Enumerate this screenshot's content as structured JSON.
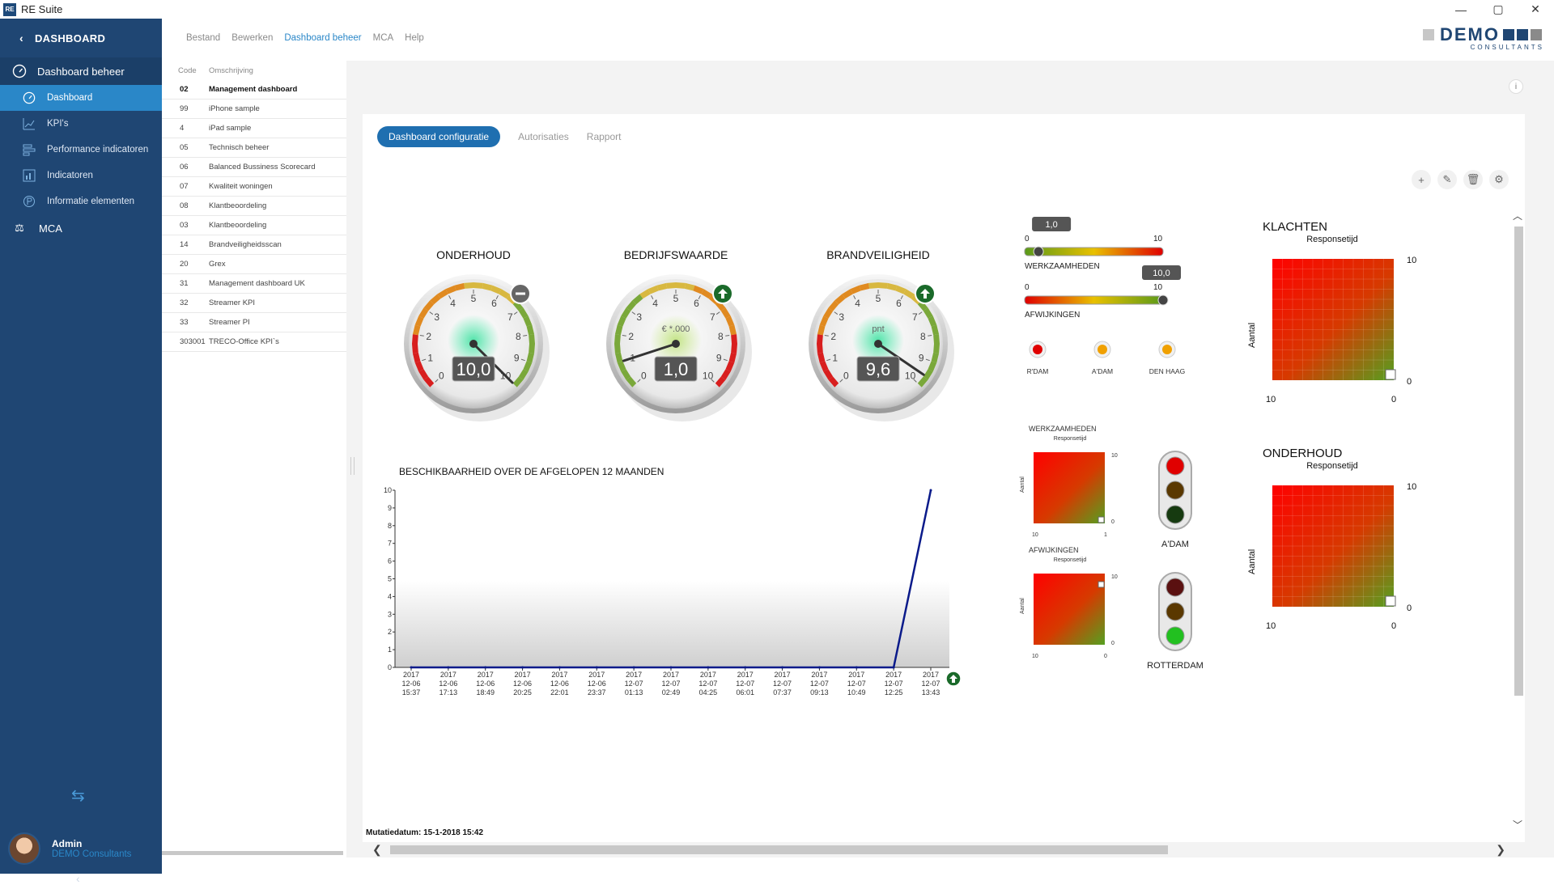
{
  "window": {
    "title": "RE Suite",
    "icon": "RE",
    "controls": [
      "—",
      "▢",
      "✕"
    ]
  },
  "sidebar": {
    "header": "DASHBOARD",
    "group": "Dashboard beheer",
    "items": [
      {
        "label": "Dashboard",
        "icon": "gauge-icon"
      },
      {
        "label": "KPI's",
        "icon": "chart-icon"
      },
      {
        "label": "Performance indicatoren",
        "icon": "bars-icon"
      },
      {
        "label": "Indicatoren",
        "icon": "indicator-icon"
      },
      {
        "label": "Informatie elementen",
        "icon": "info-elements-icon"
      }
    ],
    "mca": "MCA",
    "user": {
      "name": "Admin",
      "org": "DEMO Consultants"
    }
  },
  "menu": [
    "Bestand",
    "Bewerken",
    "Dashboard beheer",
    "MCA",
    "Help"
  ],
  "logo": {
    "text": "DEMO",
    "sub": "CONSULTANTS",
    "colors": [
      "#c7c7c7",
      "#c7c7c7",
      "#1f4673",
      "#1f4673",
      "#8a8a8a"
    ]
  },
  "list": {
    "headers": {
      "code": "Code",
      "desc": "Omschrijving"
    },
    "rows": [
      {
        "code": "02",
        "desc": "Management dashboard"
      },
      {
        "code": "99",
        "desc": "iPhone sample"
      },
      {
        "code": "4",
        "desc": "iPad sample"
      },
      {
        "code": "05",
        "desc": "Technisch beheer"
      },
      {
        "code": "06",
        "desc": "Balanced Bussiness Scorecard"
      },
      {
        "code": "07",
        "desc": "Kwaliteit woningen"
      },
      {
        "code": "08",
        "desc": "Klantbeoordeling"
      },
      {
        "code": "03",
        "desc": "Klantbeoordeling"
      },
      {
        "code": "14",
        "desc": "Brandveiligheidsscan"
      },
      {
        "code": "20",
        "desc": "Grex"
      },
      {
        "code": "31",
        "desc": "Management dashboard UK"
      },
      {
        "code": "32",
        "desc": "Streamer KPI"
      },
      {
        "code": "33",
        "desc": "Streamer PI"
      },
      {
        "code": "303001",
        "desc": "TRECO-Office KPI`s"
      }
    ]
  },
  "tabs": [
    "Dashboard configuratie",
    "Autorisaties",
    "Rapport"
  ],
  "gauges": [
    {
      "title": "ONDERHOUD",
      "value": "10,0",
      "num": 10,
      "unit": "",
      "trend": "neutral",
      "scheme": "low-red"
    },
    {
      "title": "BEDRIJFSWAARDE",
      "value": "1,0",
      "num": 1,
      "unit": "€ *.000",
      "trend": "up",
      "scheme": "high-red"
    },
    {
      "title": "BRANDVEILIGHEID",
      "value": "9,6",
      "num": 9.6,
      "unit": "pnt",
      "trend": "up",
      "scheme": "low-red"
    }
  ],
  "sliders": [
    {
      "label": "WERKZAAMHEDEN",
      "value": "1,0",
      "num": 1,
      "min": "0",
      "max": "10"
    },
    {
      "label": "AFWIJKINGEN",
      "value": "10,0",
      "num": 10,
      "min": "0",
      "max": "10"
    }
  ],
  "leds": [
    {
      "label": "R'DAM",
      "color": "#e00000"
    },
    {
      "label": "A'DAM",
      "color": "#f0a000"
    },
    {
      "label": "DEN HAAG",
      "color": "#f0a000"
    }
  ],
  "mini_matrices": [
    {
      "title": "WERKZAAMHEDEN",
      "sub": "Responsetijd",
      "y": "Aantal",
      "x0": "10",
      "x1": "1",
      "ytop": "10",
      "ybot": "0"
    },
    {
      "title": "AFWIJKINGEN",
      "sub": "Responsetijd",
      "y": "Aantal",
      "x0": "10",
      "x1": "0",
      "ytop": "10",
      "ybot": "0"
    }
  ],
  "traffic": [
    {
      "label": "A'DAM",
      "on": "red"
    },
    {
      "label": "ROTTERDAM",
      "on": "green"
    }
  ],
  "matrices": [
    {
      "title": "KLACHTEN",
      "sub": "Responsetijd",
      "y": "Aantal",
      "ytop": "10",
      "ybot": "0",
      "x0": "10",
      "x1": "0"
    },
    {
      "title": "ONDERHOUD",
      "sub": "Responsetijd",
      "y": "Aantal",
      "ytop": "10",
      "ybot": "0",
      "x0": "10",
      "x1": "0"
    }
  ],
  "chart_data": {
    "type": "line",
    "title": "BESCHIKBAARHEID OVER DE AFGELOPEN 12 MAANDEN",
    "x": [
      "2017 12-06 15:37",
      "2017 12-06 17:13",
      "2017 12-06 18:49",
      "2017 12-06 20:25",
      "2017 12-06 22:01",
      "2017 12-06 23:37",
      "2017 12-07 01:13",
      "2017 12-07 02:49",
      "2017 12-07 04:25",
      "2017 12-07 06:01",
      "2017 12-07 07:37",
      "2017 12-07 09:13",
      "2017 12-07 10:49",
      "2017 12-07 12:25",
      "2017 12-07 13:43"
    ],
    "values": [
      0,
      0,
      0,
      0,
      0,
      0,
      0,
      0,
      0,
      0,
      0,
      0,
      0,
      0,
      10
    ],
    "ylim": [
      0,
      10
    ],
    "yticks": [
      0,
      1,
      2,
      3,
      4,
      5,
      6,
      7,
      8,
      9,
      10
    ],
    "trend": "up"
  },
  "footer": {
    "mutatie": "Mutatiedatum: 15-1-2018 15:42"
  }
}
